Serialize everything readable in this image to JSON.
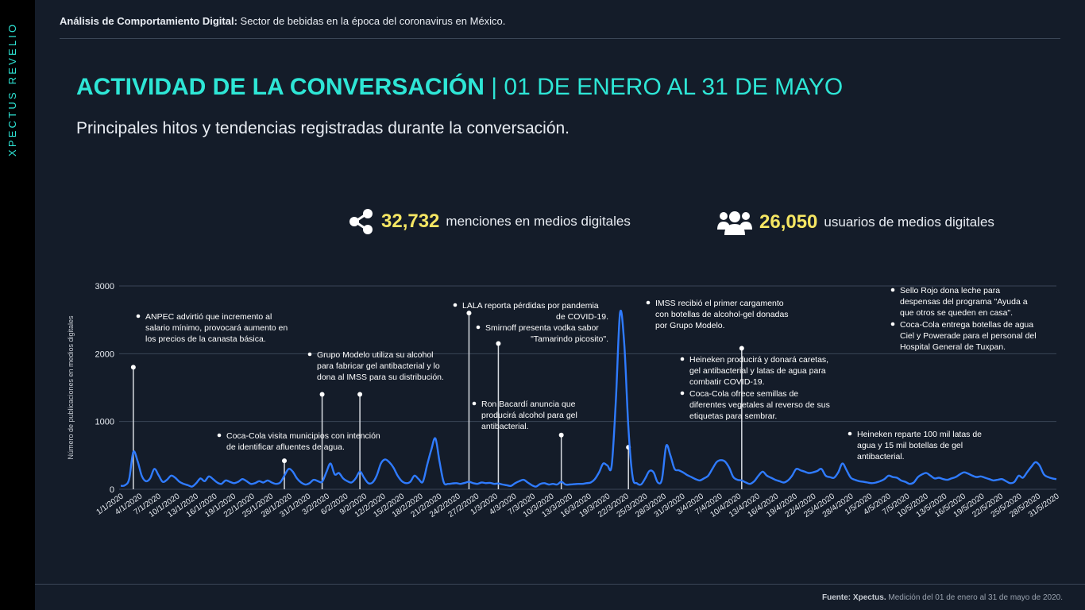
{
  "brand": "XPECTUS REVELIO",
  "header": {
    "bold": "Análisis de Comportamiento Digital:",
    "rest": " Sector de bebidas en la época del coronavirus en México."
  },
  "title": {
    "main": "ACTIVIDAD DE LA CONVERSACIÓN",
    "sep": " | ",
    "range": "01 DE ENERO AL 31 DE MAYO"
  },
  "subtitle": "Principales hitos y tendencias registradas durante la conversación.",
  "stats": [
    {
      "icon": "share-icon",
      "value": "32,732",
      "label": "menciones en medios digitales"
    },
    {
      "icon": "users-icon",
      "value": "26,050",
      "label": "usuarios de medios digitales"
    }
  ],
  "footer": {
    "bold": "Fuente: Xpectus.",
    "rest": " Medición del 01 de enero al 31 de mayo de 2020."
  },
  "colors": {
    "line": "#2f7bff",
    "accent": "#2ee6d6",
    "stat": "#f5e663"
  },
  "chart_data": {
    "type": "line",
    "ylabel": "Número de publicaciones en medios digitales",
    "ylim": [
      0,
      3000
    ],
    "yticks": [
      0,
      1000,
      2000,
      3000
    ],
    "grid": true,
    "x_tick_labels": [
      "1/1/2020",
      "4/1/2020",
      "7/1/2020",
      "10/1/2020",
      "13/1/2020",
      "16/1/2020",
      "19/1/2020",
      "22/1/2020",
      "25/1/2020",
      "28/1/2020",
      "31/1/2020",
      "3/2/2020",
      "6/2/2020",
      "9/2/2020",
      "12/2/2020",
      "15/2/2020",
      "18/2/2020",
      "21/2/2020",
      "24/2/2020",
      "27/2/2020",
      "1/3/2020",
      "4/3/2020",
      "7/3/2020",
      "10/3/2020",
      "13/3/2020",
      "16/3/2020",
      "19/3/2020",
      "22/3/2020",
      "25/3/2020",
      "28/3/2020",
      "31/3/2020",
      "3/4/2020",
      "7/4/2020",
      "10/4/2020",
      "13/4/2020",
      "16/4/2020",
      "19/4/2020",
      "22/4/2020",
      "25/4/2020",
      "28/4/2020",
      "1/5/2020",
      "4/5/2020",
      "7/5/2020",
      "10/5/2020",
      "13/5/2020",
      "16/5/2020",
      "19/5/2020",
      "22/5/2020",
      "25/5/2020",
      "28/5/2020",
      "31/5/2020"
    ],
    "series": [
      {
        "values": [
          50,
          60,
          150,
          550,
          420,
          200,
          120,
          160,
          300,
          210,
          110,
          140,
          200,
          170,
          110,
          80,
          60,
          40,
          90,
          160,
          120,
          190,
          150,
          100,
          80,
          130,
          110,
          90,
          110,
          150,
          120,
          80,
          90,
          120,
          100,
          130,
          100,
          80,
          100,
          200,
          300,
          260,
          160,
          100,
          70,
          90,
          140,
          120,
          110,
          250,
          380,
          220,
          240,
          160,
          120,
          100,
          160,
          260,
          170,
          90,
          100,
          200,
          380,
          440,
          400,
          320,
          200,
          120,
          90,
          110,
          200,
          150,
          110,
          350,
          580,
          750,
          400,
          100,
          80,
          85,
          90,
          80,
          95,
          110,
          90,
          80,
          100,
          90,
          95,
          80,
          85,
          70,
          60,
          50,
          90,
          120,
          140,
          100,
          60,
          40,
          80,
          90,
          70,
          80,
          70,
          110,
          70,
          70,
          75,
          80,
          80,
          90,
          100,
          150,
          250,
          380,
          350,
          350,
          1300,
          2600,
          2150,
          900,
          180,
          90,
          70,
          160,
          270,
          250,
          100,
          150,
          640,
          500,
          300,
          280,
          250,
          210,
          180,
          150,
          130,
          160,
          200,
          300,
          400,
          430,
          410,
          320,
          180,
          140,
          130,
          100,
          80,
          120,
          200,
          260,
          200,
          170,
          140,
          120,
          100,
          130,
          200,
          300,
          280,
          260,
          240,
          250,
          270,
          300,
          200,
          180,
          170,
          250,
          380,
          280,
          170,
          140,
          120,
          110,
          100,
          90,
          100,
          120,
          150,
          200,
          180,
          170,
          130,
          110,
          80,
          100,
          180,
          220,
          240,
          200,
          160,
          170,
          150,
          140,
          160,
          180,
          220,
          250,
          230,
          200,
          180,
          190,
          170,
          150,
          130,
          140,
          150,
          120,
          90,
          110,
          200,
          170,
          250,
          330,
          400,
          350,
          220,
          180,
          160,
          150
        ]
      }
    ],
    "annotations": [
      {
        "at": 3,
        "value": 1800,
        "lines": [
          "ANPEC advirtió que incremento al",
          "salario mínimo, provocará aumento en",
          "los precios de la canasta básica."
        ]
      },
      {
        "at": 39,
        "value": 420,
        "lines": [
          "Coca-Cola visita municipios con intención",
          "de identificar afluentes de agua."
        ]
      },
      {
        "at": 39,
        "value": 420,
        "lines": [
          "Grupo Modelo utiliza su alcohol",
          "para fabricar gel antibacterial y lo",
          "dona al IMSS para su distribución."
        ]
      },
      {
        "at": 48,
        "value": 1400,
        "lines": [
          "Ron Bacardí anuncia que",
          "producirá alcohol para gel",
          "antibacterial."
        ]
      },
      {
        "at": 57,
        "value": 1400,
        "lines": [
          "LALA reporta pérdidas por pandemia",
          "de COVID-19."
        ]
      },
      {
        "at": 57,
        "value": 1400,
        "lines": [
          "Smirnoff presenta vodka sabor",
          "\"Tamarindo picosito\"."
        ]
      },
      {
        "at": 83,
        "value": 2600,
        "lines": [
          "IMSS recibió el primer cargamento",
          "con botellas de alcohol-gel donadas",
          "por Grupo Modelo."
        ]
      },
      {
        "at": 90,
        "value": 2150,
        "lines": [
          "Heineken producirá y donará caretas,",
          "gel antibacterial y latas de agua para",
          "combatir COVID-19."
        ]
      },
      {
        "at": 105,
        "value": 800,
        "lines": [
          "Coca-Cola ofrece semillas de",
          "diferentes vegetales al reverso de sus",
          "etiquetas para sembrar."
        ]
      },
      {
        "at": 121,
        "value": 620,
        "lines": [
          "Heineken reparte 100 mil latas de",
          "agua y 15 mil botellas de gel",
          "antibacterial."
        ]
      },
      {
        "at": 148,
        "value": 2080,
        "lines": [
          "Sello Rojo dona leche para",
          "despensas del programa \"Ayuda a",
          "que otros se queden en casa\"."
        ]
      },
      {
        "at": 148,
        "value": 2080,
        "lines": [
          "Coca-Cola entrega botellas de agua",
          "Ciel y Powerade para el personal del",
          "Hospital General de Tuxpan."
        ]
      }
    ]
  }
}
